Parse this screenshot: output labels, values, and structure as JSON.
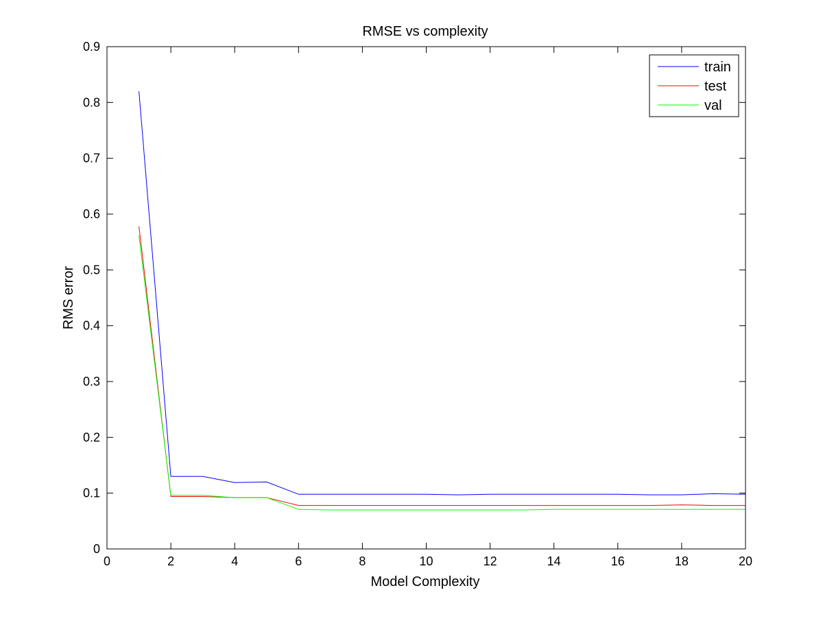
{
  "chart_data": {
    "type": "line",
    "title": "RMSE vs complexity",
    "xlabel": "Model Complexity",
    "ylabel": "RMS error",
    "xlim": [
      0,
      20
    ],
    "ylim": [
      0,
      0.9
    ],
    "xticks": [
      0,
      2,
      4,
      6,
      8,
      10,
      12,
      14,
      16,
      18,
      20
    ],
    "yticks": [
      0,
      0.1,
      0.2,
      0.3,
      0.4,
      0.5,
      0.6,
      0.7,
      0.8,
      0.9
    ],
    "xtick_labels": [
      "0",
      "2",
      "4",
      "6",
      "8",
      "10",
      "12",
      "14",
      "16",
      "18",
      "20"
    ],
    "ytick_labels": [
      "0",
      "0.1",
      "0.2",
      "0.3",
      "0.4",
      "0.5",
      "0.6",
      "0.7",
      "0.8",
      "0.9"
    ],
    "grid": false,
    "legend_position": "top-right",
    "x": [
      1,
      2,
      3,
      4,
      5,
      6,
      7,
      8,
      9,
      10,
      11,
      12,
      13,
      14,
      15,
      16,
      17,
      18,
      19,
      20
    ],
    "series": [
      {
        "name": "train",
        "color": "#0000ff",
        "values": [
          0.82,
          0.13,
          0.13,
          0.119,
          0.12,
          0.098,
          0.098,
          0.098,
          0.098,
          0.098,
          0.097,
          0.098,
          0.098,
          0.098,
          0.098,
          0.098,
          0.097,
          0.097,
          0.099,
          0.098
        ]
      },
      {
        "name": "test",
        "color": "#ff0000",
        "values": [
          0.578,
          0.094,
          0.094,
          0.092,
          0.092,
          0.078,
          0.078,
          0.078,
          0.078,
          0.078,
          0.078,
          0.078,
          0.078,
          0.078,
          0.078,
          0.078,
          0.078,
          0.079,
          0.078,
          0.078
        ]
      },
      {
        "name": "val",
        "color": "#00ff00",
        "values": [
          0.562,
          0.096,
          0.096,
          0.092,
          0.092,
          0.071,
          0.07,
          0.07,
          0.07,
          0.07,
          0.07,
          0.07,
          0.07,
          0.071,
          0.071,
          0.071,
          0.071,
          0.071,
          0.071,
          0.071
        ]
      }
    ]
  }
}
